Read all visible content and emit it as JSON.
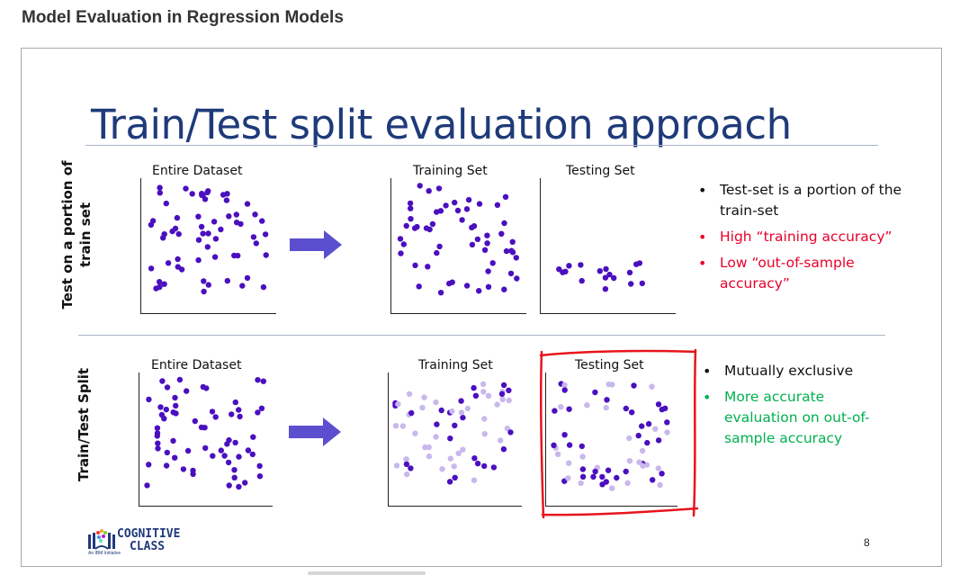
{
  "page": {
    "title": "Model Evaluation in Regression Models"
  },
  "slide": {
    "title": "Train/Test split evaluation approach",
    "number": "8",
    "colors": {
      "title": "#1f3a7a",
      "dot_dark": "#4b0fbf",
      "dot_light": "#c9b8ec",
      "arrow": "#5b4fcf",
      "highlight": "#e8141c",
      "red_text": "#e8002a",
      "green_text": "#00b050"
    },
    "top_section": {
      "row_label_line1": "Test on a portion of",
      "row_label_line2": "train set",
      "panels": {
        "entire": "Entire Dataset",
        "training": "Training Set",
        "testing": "Testing Set"
      },
      "bullets": [
        {
          "text": "Test-set is a portion of the train-set",
          "color": "black"
        },
        {
          "text": "High “training accuracy”",
          "color": "red"
        },
        {
          "text": " Low “out-of-sample accuracy”",
          "color": "red"
        }
      ]
    },
    "bottom_section": {
      "row_label": "Train/Test Split",
      "panels": {
        "entire": "Entire Dataset",
        "training": "Training Set",
        "testing": "Testing Set"
      },
      "bullets": [
        {
          "text": "Mutually exclusive",
          "color": "black"
        },
        {
          "text": "More accurate evaluation on out-of-sample accuracy",
          "color": "green"
        }
      ]
    },
    "logo": {
      "line1": "COGNITIVE",
      "line2": "CLASS",
      "tagline": "An IBM Initiative"
    }
  }
}
